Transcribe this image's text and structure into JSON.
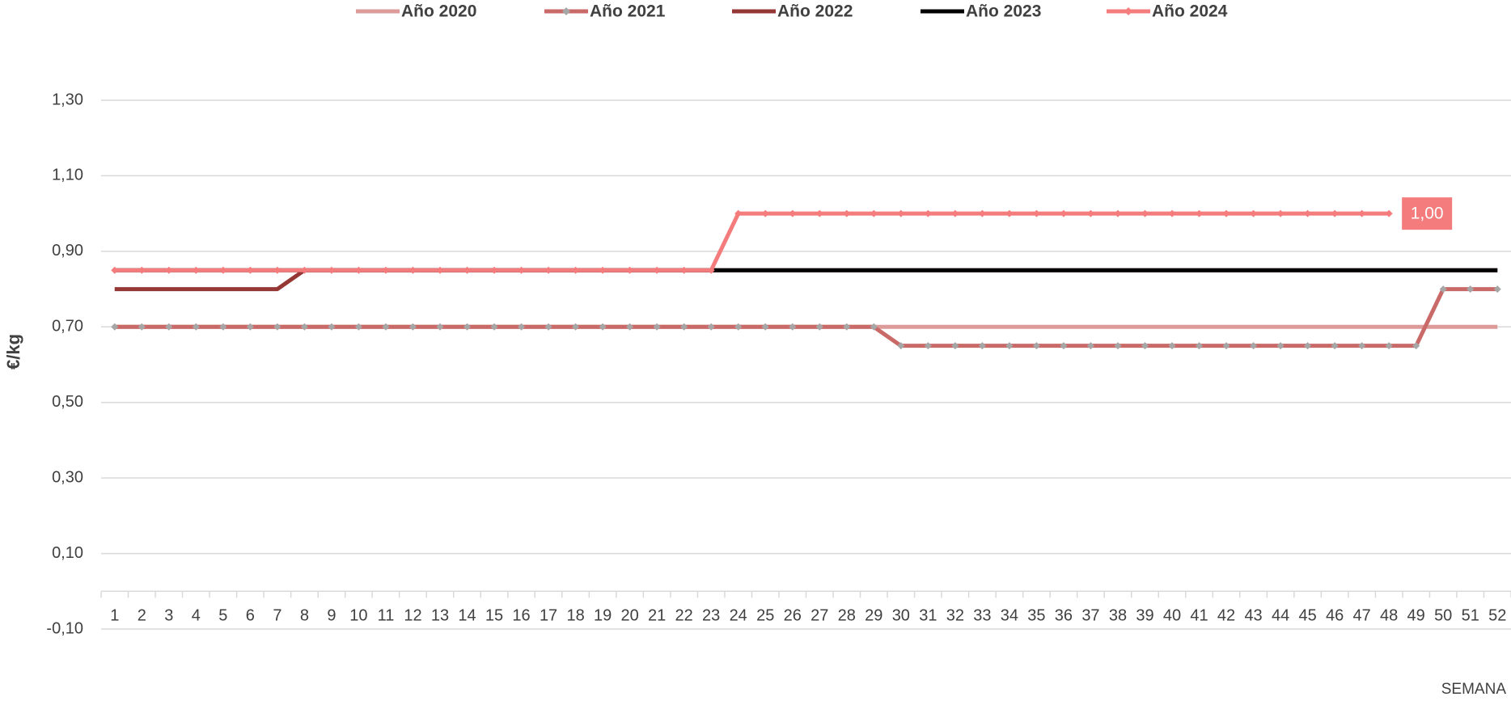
{
  "chart_data": {
    "type": "line",
    "y_label": "€/kg",
    "x_label": "SEMANA",
    "categories": [
      1,
      2,
      3,
      4,
      5,
      6,
      7,
      8,
      9,
      10,
      11,
      12,
      13,
      14,
      15,
      16,
      17,
      18,
      19,
      20,
      21,
      22,
      23,
      24,
      25,
      26,
      27,
      28,
      29,
      30,
      31,
      32,
      33,
      34,
      35,
      36,
      37,
      38,
      39,
      40,
      41,
      42,
      43,
      44,
      45,
      46,
      47,
      48,
      49,
      50,
      51,
      52
    ],
    "ylim": [
      -0.1,
      1.3
    ],
    "yticks": [
      {
        "value": -0.1,
        "label": "-0,10"
      },
      {
        "value": 0.1,
        "label": "0,10"
      },
      {
        "value": 0.3,
        "label": "0,30"
      },
      {
        "value": 0.5,
        "label": "0,50"
      },
      {
        "value": 0.7,
        "label": "0,70"
      },
      {
        "value": 0.9,
        "label": "0,90"
      },
      {
        "value": 1.1,
        "label": "1,10"
      },
      {
        "value": 1.3,
        "label": "1,30"
      }
    ],
    "grid": true,
    "legend": "top",
    "series": [
      {
        "name": "Año 2020",
        "color": "#dc9a98",
        "marker": false,
        "values": [
          0.7,
          0.7,
          0.7,
          0.7,
          0.7,
          0.7,
          0.7,
          0.7,
          0.7,
          0.7,
          0.7,
          0.7,
          0.7,
          0.7,
          0.7,
          0.7,
          0.7,
          0.7,
          0.7,
          0.7,
          0.7,
          0.7,
          0.7,
          0.7,
          0.7,
          0.7,
          0.7,
          0.7,
          0.7,
          0.7,
          0.7,
          0.7,
          0.7,
          0.7,
          0.7,
          0.7,
          0.7,
          0.7,
          0.7,
          0.7,
          0.7,
          0.7,
          0.7,
          0.7,
          0.7,
          0.7,
          0.7,
          0.7,
          0.7,
          0.7,
          0.7,
          0.7
        ]
      },
      {
        "name": "Año 2021",
        "color": "#c96a68",
        "marker": true,
        "marker_color": "#a6a6a6",
        "values": [
          0.7,
          0.7,
          0.7,
          0.7,
          0.7,
          0.7,
          0.7,
          0.7,
          0.7,
          0.7,
          0.7,
          0.7,
          0.7,
          0.7,
          0.7,
          0.7,
          0.7,
          0.7,
          0.7,
          0.7,
          0.7,
          0.7,
          0.7,
          0.7,
          0.7,
          0.7,
          0.7,
          0.7,
          0.7,
          0.65,
          0.65,
          0.65,
          0.65,
          0.65,
          0.65,
          0.65,
          0.65,
          0.65,
          0.65,
          0.65,
          0.65,
          0.65,
          0.65,
          0.65,
          0.65,
          0.65,
          0.65,
          0.65,
          0.65,
          0.8,
          0.8,
          0.8
        ]
      },
      {
        "name": "Año 2022",
        "color": "#953735",
        "marker": false,
        "values": [
          0.8,
          0.8,
          0.8,
          0.8,
          0.8,
          0.8,
          0.8,
          0.85,
          0.85,
          0.85,
          0.85,
          0.85,
          0.85,
          0.85,
          0.85,
          0.85,
          0.85,
          0.85,
          0.85,
          0.85,
          0.85,
          0.85,
          0.85,
          0.85,
          0.85,
          0.85,
          0.85,
          0.85,
          0.85,
          0.85,
          0.85,
          0.85,
          0.85,
          0.85,
          0.85,
          0.85,
          0.85,
          0.85,
          0.85,
          0.85,
          0.85,
          0.85,
          0.85,
          0.85,
          0.85,
          0.85,
          0.85,
          0.85,
          0.85,
          0.85,
          0.85,
          0.85
        ]
      },
      {
        "name": "Año 2023",
        "color": "#000000",
        "marker": false,
        "values": [
          0.85,
          0.85,
          0.85,
          0.85,
          0.85,
          0.85,
          0.85,
          0.85,
          0.85,
          0.85,
          0.85,
          0.85,
          0.85,
          0.85,
          0.85,
          0.85,
          0.85,
          0.85,
          0.85,
          0.85,
          0.85,
          0.85,
          0.85,
          0.85,
          0.85,
          0.85,
          0.85,
          0.85,
          0.85,
          0.85,
          0.85,
          0.85,
          0.85,
          0.85,
          0.85,
          0.85,
          0.85,
          0.85,
          0.85,
          0.85,
          0.85,
          0.85,
          0.85,
          0.85,
          0.85,
          0.85,
          0.85,
          0.85,
          0.85,
          0.85,
          0.85,
          0.85
        ]
      },
      {
        "name": "Año 2024",
        "color": "#f47c7c",
        "marker": true,
        "marker_color": "#f47c7c",
        "values": [
          0.85,
          0.85,
          0.85,
          0.85,
          0.85,
          0.85,
          0.85,
          0.85,
          0.85,
          0.85,
          0.85,
          0.85,
          0.85,
          0.85,
          0.85,
          0.85,
          0.85,
          0.85,
          0.85,
          0.85,
          0.85,
          0.85,
          0.85,
          1.0,
          1.0,
          1.0,
          1.0,
          1.0,
          1.0,
          1.0,
          1.0,
          1.0,
          1.0,
          1.0,
          1.0,
          1.0,
          1.0,
          1.0,
          1.0,
          1.0,
          1.0,
          1.0,
          1.0,
          1.0,
          1.0,
          1.0,
          1.0,
          1.0,
          null,
          null,
          null,
          null
        ],
        "value_labels": {
          "47": "1,00"
        }
      }
    ]
  }
}
